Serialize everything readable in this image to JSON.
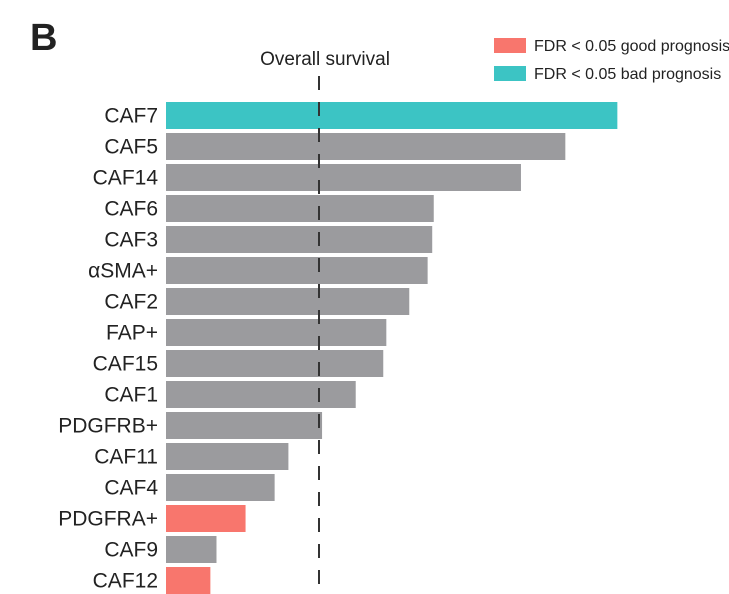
{
  "panel_label": "B",
  "chart_data": {
    "type": "bar",
    "orientation": "horizontal",
    "title": "",
    "reference_line": {
      "label": "Overall survival",
      "value": 1.0,
      "style": "dashed"
    },
    "categories": [
      "CAF7",
      "CAF5",
      "CAF14",
      "CAF6",
      "CAF3",
      "αSMA+",
      "CAF2",
      "FAP+",
      "CAF15",
      "CAF1",
      "PDGFRB+",
      "CAF11",
      "CAF4",
      "PDGFRA+",
      "CAF9",
      "CAF12"
    ],
    "values": [
      2.95,
      2.61,
      2.32,
      1.75,
      1.74,
      1.71,
      1.59,
      1.44,
      1.42,
      1.24,
      1.02,
      0.8,
      0.71,
      0.52,
      0.33,
      0.29
    ],
    "groups": [
      "bad",
      "none",
      "none",
      "none",
      "none",
      "none",
      "none",
      "none",
      "none",
      "none",
      "none",
      "none",
      "none",
      "good",
      "none",
      "good"
    ],
    "colors": {
      "good": "#f8766d",
      "bad": "#3cc4c4",
      "none": "#9b9b9e"
    },
    "legend": {
      "placement": "top-right",
      "entries": [
        {
          "key": "good",
          "label": "FDR < 0.05 good prognosis"
        },
        {
          "key": "bad",
          "label": "FDR < 0.05 bad prognosis"
        }
      ]
    },
    "xlim": [
      0,
      3.5
    ],
    "grid": false
  }
}
